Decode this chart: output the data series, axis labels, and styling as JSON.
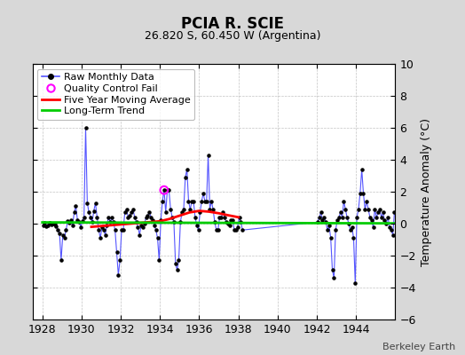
{
  "title": "PCIA R. SCIE",
  "subtitle": "26.820 S, 60.450 W (Argentina)",
  "ylabel": "Temperature Anomaly (°C)",
  "credit": "Berkeley Earth",
  "ylim": [
    -6,
    10
  ],
  "xlim": [
    1927.5,
    1946.0
  ],
  "yticks": [
    -6,
    -4,
    -2,
    0,
    2,
    4,
    6,
    8,
    10
  ],
  "xticks": [
    1928,
    1930,
    1932,
    1934,
    1936,
    1938,
    1940,
    1942,
    1944
  ],
  "bg_color": "#d8d8d8",
  "plot_bg_color": "#ffffff",
  "raw_line_color": "#5555ff",
  "raw_marker_color": "#000000",
  "ma_color": "#ff0000",
  "trend_color": "#00cc00",
  "qc_color": "#ff00ff",
  "raw_data": [
    [
      1928.042,
      -0.1
    ],
    [
      1928.125,
      0.05
    ],
    [
      1928.208,
      -0.15
    ],
    [
      1928.292,
      -0.1
    ],
    [
      1928.375,
      0.05
    ],
    [
      1928.458,
      -0.05
    ],
    [
      1928.542,
      0.0
    ],
    [
      1928.625,
      -0.05
    ],
    [
      1928.708,
      -0.15
    ],
    [
      1928.792,
      -0.4
    ],
    [
      1928.875,
      -0.6
    ],
    [
      1928.958,
      -2.3
    ],
    [
      1929.042,
      -0.7
    ],
    [
      1929.125,
      -0.9
    ],
    [
      1929.208,
      -0.4
    ],
    [
      1929.292,
      0.15
    ],
    [
      1929.375,
      0.05
    ],
    [
      1929.458,
      0.2
    ],
    [
      1929.542,
      -0.1
    ],
    [
      1929.625,
      0.7
    ],
    [
      1929.708,
      1.1
    ],
    [
      1929.792,
      0.2
    ],
    [
      1929.875,
      0.1
    ],
    [
      1929.958,
      -0.2
    ],
    [
      1930.042,
      0.15
    ],
    [
      1930.125,
      0.4
    ],
    [
      1930.208,
      6.0
    ],
    [
      1930.292,
      1.3
    ],
    [
      1930.375,
      0.7
    ],
    [
      1930.458,
      0.4
    ],
    [
      1930.542,
      0.1
    ],
    [
      1930.625,
      0.8
    ],
    [
      1930.708,
      1.3
    ],
    [
      1930.792,
      0.4
    ],
    [
      1930.875,
      -0.4
    ],
    [
      1930.958,
      -0.9
    ],
    [
      1931.042,
      -0.2
    ],
    [
      1931.125,
      -0.4
    ],
    [
      1931.208,
      -0.7
    ],
    [
      1931.292,
      -0.1
    ],
    [
      1931.375,
      0.4
    ],
    [
      1931.458,
      0.1
    ],
    [
      1931.542,
      0.4
    ],
    [
      1931.625,
      0.1
    ],
    [
      1931.708,
      -0.4
    ],
    [
      1931.792,
      -1.8
    ],
    [
      1931.875,
      -3.2
    ],
    [
      1931.958,
      -2.3
    ],
    [
      1932.042,
      -0.4
    ],
    [
      1932.125,
      -0.4
    ],
    [
      1932.208,
      0.7
    ],
    [
      1932.292,
      0.9
    ],
    [
      1932.375,
      0.4
    ],
    [
      1932.458,
      0.5
    ],
    [
      1932.542,
      0.7
    ],
    [
      1932.625,
      0.9
    ],
    [
      1932.708,
      0.4
    ],
    [
      1932.792,
      0.1
    ],
    [
      1932.875,
      -0.2
    ],
    [
      1932.958,
      -0.7
    ],
    [
      1933.042,
      -0.1
    ],
    [
      1933.125,
      -0.2
    ],
    [
      1933.208,
      0.0
    ],
    [
      1933.292,
      0.4
    ],
    [
      1933.375,
      0.5
    ],
    [
      1933.458,
      0.7
    ],
    [
      1933.542,
      0.4
    ],
    [
      1933.625,
      0.2
    ],
    [
      1933.708,
      -0.1
    ],
    [
      1933.792,
      -0.4
    ],
    [
      1933.875,
      -0.9
    ],
    [
      1933.958,
      -2.3
    ],
    [
      1934.042,
      0.2
    ],
    [
      1934.125,
      1.4
    ],
    [
      1934.208,
      2.1
    ],
    [
      1934.292,
      0.7
    ],
    [
      1934.375,
      2.1
    ],
    [
      1934.458,
      2.1
    ],
    [
      1934.542,
      0.9
    ],
    [
      1934.625,
      0.4
    ],
    [
      1934.708,
      0.1
    ],
    [
      1934.792,
      -2.5
    ],
    [
      1934.875,
      -2.9
    ],
    [
      1934.958,
      -2.3
    ],
    [
      1935.042,
      0.1
    ],
    [
      1935.125,
      0.7
    ],
    [
      1935.208,
      0.9
    ],
    [
      1935.292,
      2.9
    ],
    [
      1935.375,
      3.4
    ],
    [
      1935.458,
      1.4
    ],
    [
      1935.542,
      0.9
    ],
    [
      1935.625,
      1.4
    ],
    [
      1935.708,
      1.4
    ],
    [
      1935.792,
      0.4
    ],
    [
      1935.875,
      -0.1
    ],
    [
      1935.958,
      -0.4
    ],
    [
      1936.042,
      0.7
    ],
    [
      1936.125,
      1.4
    ],
    [
      1936.208,
      1.9
    ],
    [
      1936.292,
      1.4
    ],
    [
      1936.375,
      1.4
    ],
    [
      1936.458,
      4.3
    ],
    [
      1936.542,
      0.9
    ],
    [
      1936.625,
      1.4
    ],
    [
      1936.708,
      0.9
    ],
    [
      1936.792,
      0.1
    ],
    [
      1936.875,
      -0.4
    ],
    [
      1936.958,
      -0.4
    ],
    [
      1937.042,
      0.4
    ],
    [
      1937.125,
      0.4
    ],
    [
      1937.208,
      0.7
    ],
    [
      1937.292,
      0.4
    ],
    [
      1937.375,
      0.1
    ],
    [
      1937.458,
      0.0
    ],
    [
      1937.542,
      -0.1
    ],
    [
      1937.625,
      0.2
    ],
    [
      1937.708,
      0.2
    ],
    [
      1937.792,
      -0.4
    ],
    [
      1937.875,
      -0.4
    ],
    [
      1937.958,
      -0.2
    ],
    [
      1938.042,
      0.4
    ],
    [
      1938.125,
      0.1
    ],
    [
      1938.208,
      -0.4
    ],
    [
      1942.042,
      0.1
    ],
    [
      1942.125,
      0.4
    ],
    [
      1942.208,
      0.7
    ],
    [
      1942.292,
      0.2
    ],
    [
      1942.375,
      0.4
    ],
    [
      1942.458,
      0.1
    ],
    [
      1942.542,
      -0.4
    ],
    [
      1942.625,
      -0.1
    ],
    [
      1942.708,
      -0.9
    ],
    [
      1942.792,
      -2.9
    ],
    [
      1942.875,
      -3.4
    ],
    [
      1942.958,
      -0.4
    ],
    [
      1943.042,
      0.2
    ],
    [
      1943.125,
      0.4
    ],
    [
      1943.208,
      0.7
    ],
    [
      1943.292,
      0.4
    ],
    [
      1943.375,
      1.4
    ],
    [
      1943.458,
      0.9
    ],
    [
      1943.542,
      0.4
    ],
    [
      1943.625,
      0.0
    ],
    [
      1943.708,
      -0.4
    ],
    [
      1943.792,
      -0.2
    ],
    [
      1943.875,
      -0.9
    ],
    [
      1943.958,
      -3.7
    ],
    [
      1944.042,
      0.4
    ],
    [
      1944.125,
      0.9
    ],
    [
      1944.208,
      1.9
    ],
    [
      1944.292,
      3.4
    ],
    [
      1944.375,
      1.9
    ],
    [
      1944.458,
      0.9
    ],
    [
      1944.542,
      1.4
    ],
    [
      1944.625,
      0.9
    ],
    [
      1944.708,
      0.4
    ],
    [
      1944.792,
      0.2
    ],
    [
      1944.875,
      -0.2
    ],
    [
      1944.958,
      0.9
    ],
    [
      1945.042,
      0.4
    ],
    [
      1945.125,
      0.7
    ],
    [
      1945.208,
      0.9
    ],
    [
      1945.292,
      0.4
    ],
    [
      1945.375,
      0.7
    ],
    [
      1945.458,
      0.2
    ],
    [
      1945.542,
      0.0
    ],
    [
      1945.625,
      0.4
    ],
    [
      1945.708,
      -0.2
    ],
    [
      1945.792,
      -0.4
    ],
    [
      1945.875,
      -0.7
    ],
    [
      1945.958,
      0.7
    ]
  ],
  "moving_avg": [
    [
      1930.5,
      -0.2
    ],
    [
      1931.0,
      -0.15
    ],
    [
      1931.5,
      -0.1
    ],
    [
      1932.0,
      -0.05
    ],
    [
      1932.5,
      0.0
    ],
    [
      1933.0,
      0.05
    ],
    [
      1933.5,
      0.1
    ],
    [
      1934.0,
      0.15
    ],
    [
      1934.5,
      0.3
    ],
    [
      1935.0,
      0.5
    ],
    [
      1935.5,
      0.7
    ],
    [
      1936.0,
      0.8
    ],
    [
      1936.5,
      0.75
    ],
    [
      1937.0,
      0.65
    ],
    [
      1937.5,
      0.52
    ],
    [
      1937.8,
      0.45
    ],
    [
      1938.0,
      0.4
    ]
  ],
  "trend_x": [
    1928.0,
    1945.958
  ],
  "trend_y": [
    0.08,
    0.02
  ],
  "qc_fail": [
    [
      1934.208,
      2.1
    ]
  ],
  "title_fontsize": 12,
  "subtitle_fontsize": 9,
  "credit_fontsize": 8,
  "tick_labelsize": 9,
  "ylabel_fontsize": 9,
  "legend_fontsize": 8
}
